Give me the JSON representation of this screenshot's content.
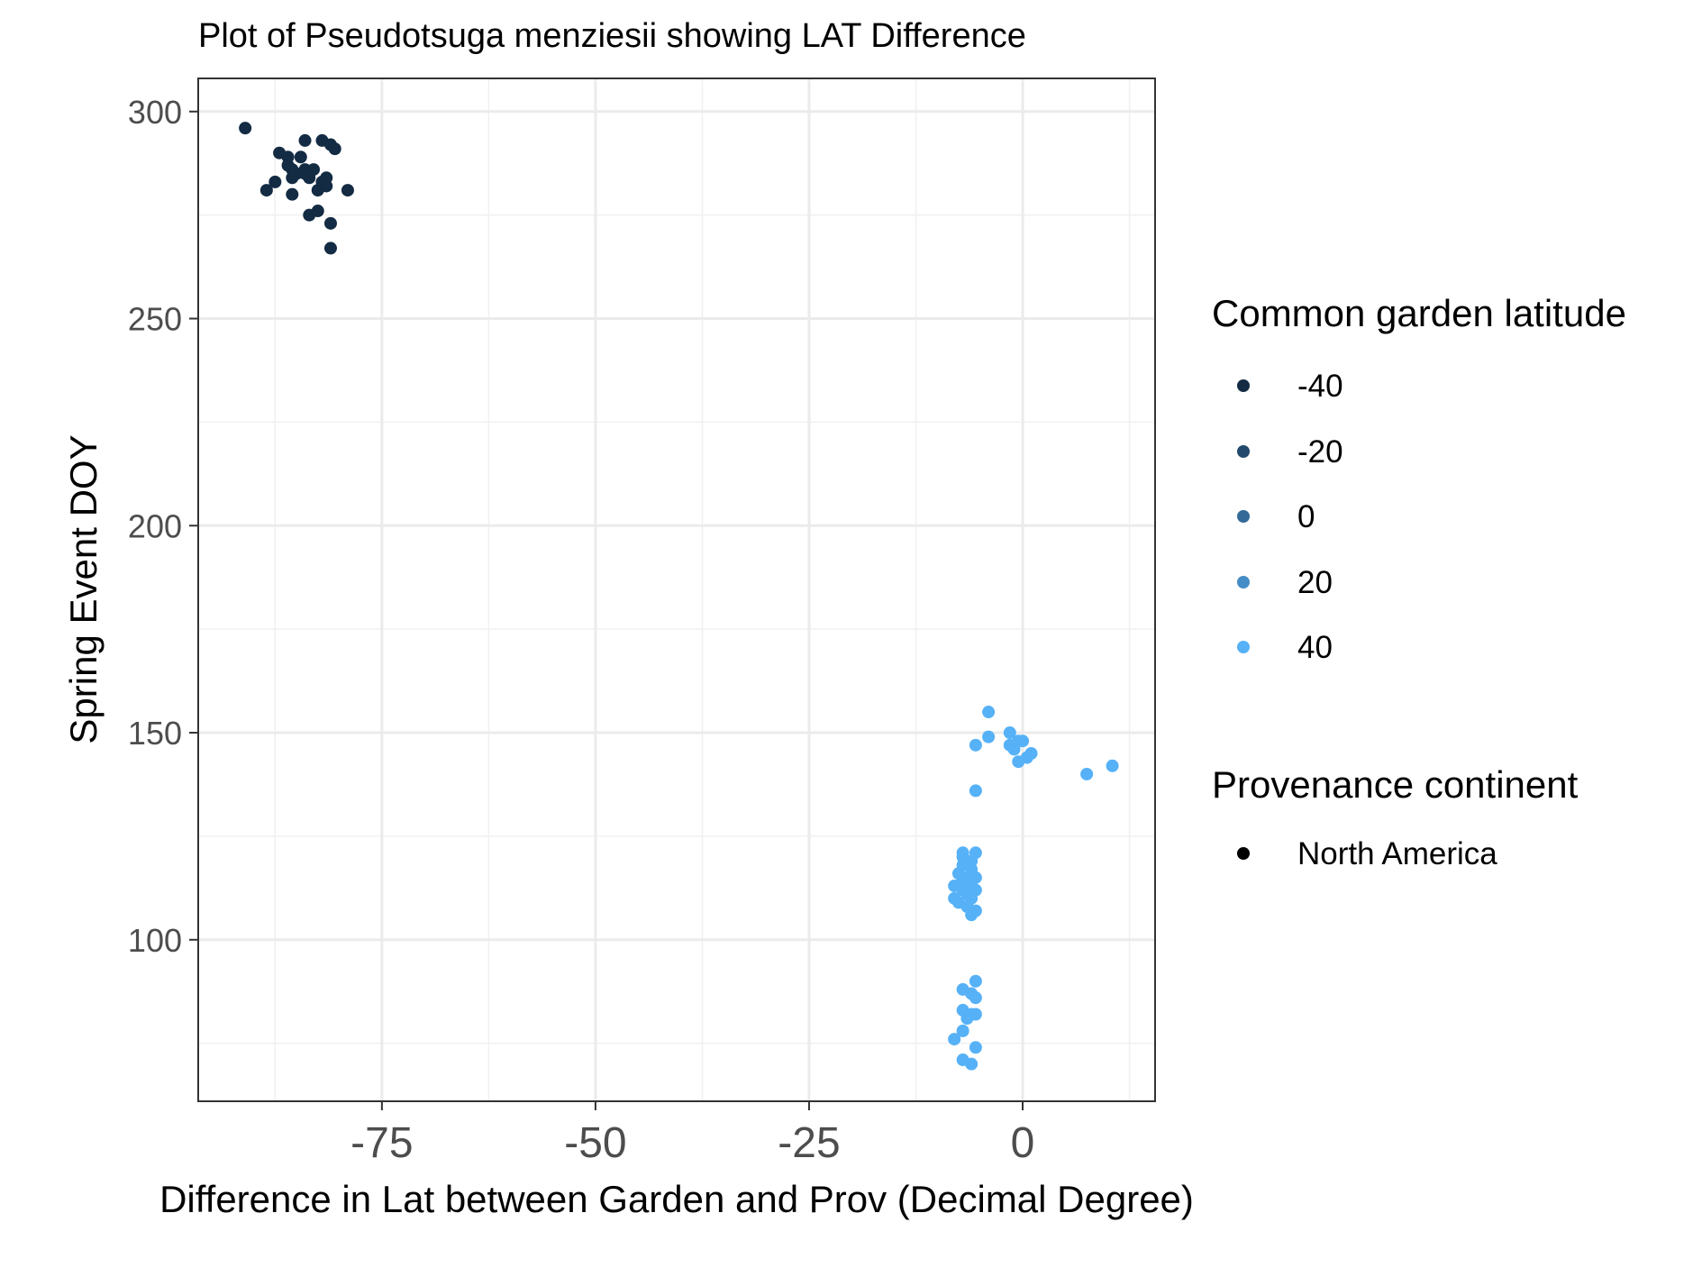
{
  "chart_data": {
    "type": "scatter",
    "title": "Plot of Pseudotsuga menziesii showing LAT Difference",
    "xlabel": "Difference in Lat between Garden and Prov (Decimal Degree)",
    "ylabel": "Spring Event DOY",
    "xlim": [
      -96.5,
      15.5
    ],
    "ylim": [
      61,
      308
    ],
    "x_ticks": [
      -75,
      -50,
      -25,
      0
    ],
    "x_tick_labels": [
      "-75",
      "-50",
      "-25",
      "0"
    ],
    "y_ticks": [
      100,
      150,
      200,
      250,
      300
    ],
    "y_tick_labels": [
      "100",
      "150",
      "200",
      "250",
      "300"
    ],
    "grid": true,
    "legend_placement": "right",
    "legends": [
      {
        "title": "Common garden latitude",
        "entries": [
          {
            "label": "-40",
            "color": "#132B43"
          },
          {
            "label": "-20",
            "color": "#234A6C"
          },
          {
            "label": "0",
            "color": "#336A98"
          },
          {
            "label": "20",
            "color": "#458DC6"
          },
          {
            "label": "40",
            "color": "#56B1F7"
          }
        ]
      },
      {
        "title": "Provenance continent",
        "entries": [
          {
            "label": "North America",
            "color": "#000000"
          }
        ]
      }
    ],
    "series": [
      {
        "color": "#132B43",
        "points": [
          [
            -91,
            296
          ],
          [
            -88.5,
            281
          ],
          [
            -87.5,
            283
          ],
          [
            -87,
            290
          ],
          [
            -86,
            289
          ],
          [
            -86,
            287
          ],
          [
            -85.5,
            284
          ],
          [
            -85.5,
            280
          ],
          [
            -85,
            285
          ],
          [
            -84.5,
            289
          ],
          [
            -84,
            286
          ],
          [
            -84,
            293
          ],
          [
            -83.5,
            275
          ],
          [
            -83.5,
            284
          ],
          [
            -83,
            286
          ],
          [
            -82.5,
            276
          ],
          [
            -82.5,
            281
          ],
          [
            -82,
            283
          ],
          [
            -82,
            293
          ],
          [
            -81.5,
            282
          ],
          [
            -81.5,
            284
          ],
          [
            -81,
            292
          ],
          [
            -81,
            273
          ],
          [
            -81,
            267
          ],
          [
            -80.5,
            291
          ],
          [
            -79,
            281
          ],
          [
            -85.5,
            286
          ],
          [
            -84,
            285
          ]
        ]
      },
      {
        "color": "#56B1F7",
        "points": [
          [
            -4,
            155
          ],
          [
            -4,
            149
          ],
          [
            -5.5,
            147
          ],
          [
            -5.5,
            136
          ],
          [
            -1.5,
            150
          ],
          [
            -1.5,
            147
          ],
          [
            -1,
            146
          ],
          [
            -0.5,
            148
          ],
          [
            -0.5,
            143
          ],
          [
            0,
            148
          ],
          [
            0.5,
            144
          ],
          [
            1,
            145
          ],
          [
            7.5,
            140
          ],
          [
            10.5,
            142
          ],
          [
            -7,
            121
          ],
          [
            -5.5,
            121
          ],
          [
            -6,
            119
          ],
          [
            -7,
            118
          ],
          [
            -6,
            117
          ],
          [
            -7.5,
            116
          ],
          [
            -6.5,
            115
          ],
          [
            -5.5,
            115
          ],
          [
            -7,
            114
          ],
          [
            -6,
            113
          ],
          [
            -8,
            113
          ],
          [
            -7,
            112
          ],
          [
            -6.5,
            111
          ],
          [
            -5.5,
            112
          ],
          [
            -8,
            110
          ],
          [
            -7.5,
            109
          ],
          [
            -6.5,
            108
          ],
          [
            -6,
            106
          ],
          [
            -5.5,
            107
          ],
          [
            -7,
            120
          ],
          [
            -6,
            110
          ],
          [
            -5.5,
            90
          ],
          [
            -7,
            88
          ],
          [
            -6,
            87
          ],
          [
            -5.5,
            86
          ],
          [
            -7,
            83
          ],
          [
            -6,
            82
          ],
          [
            -5.5,
            82
          ],
          [
            -6.5,
            81
          ],
          [
            -7,
            78
          ],
          [
            -8,
            76
          ],
          [
            -5.5,
            74
          ],
          [
            -7,
            71
          ],
          [
            -6,
            70
          ]
        ]
      }
    ]
  }
}
